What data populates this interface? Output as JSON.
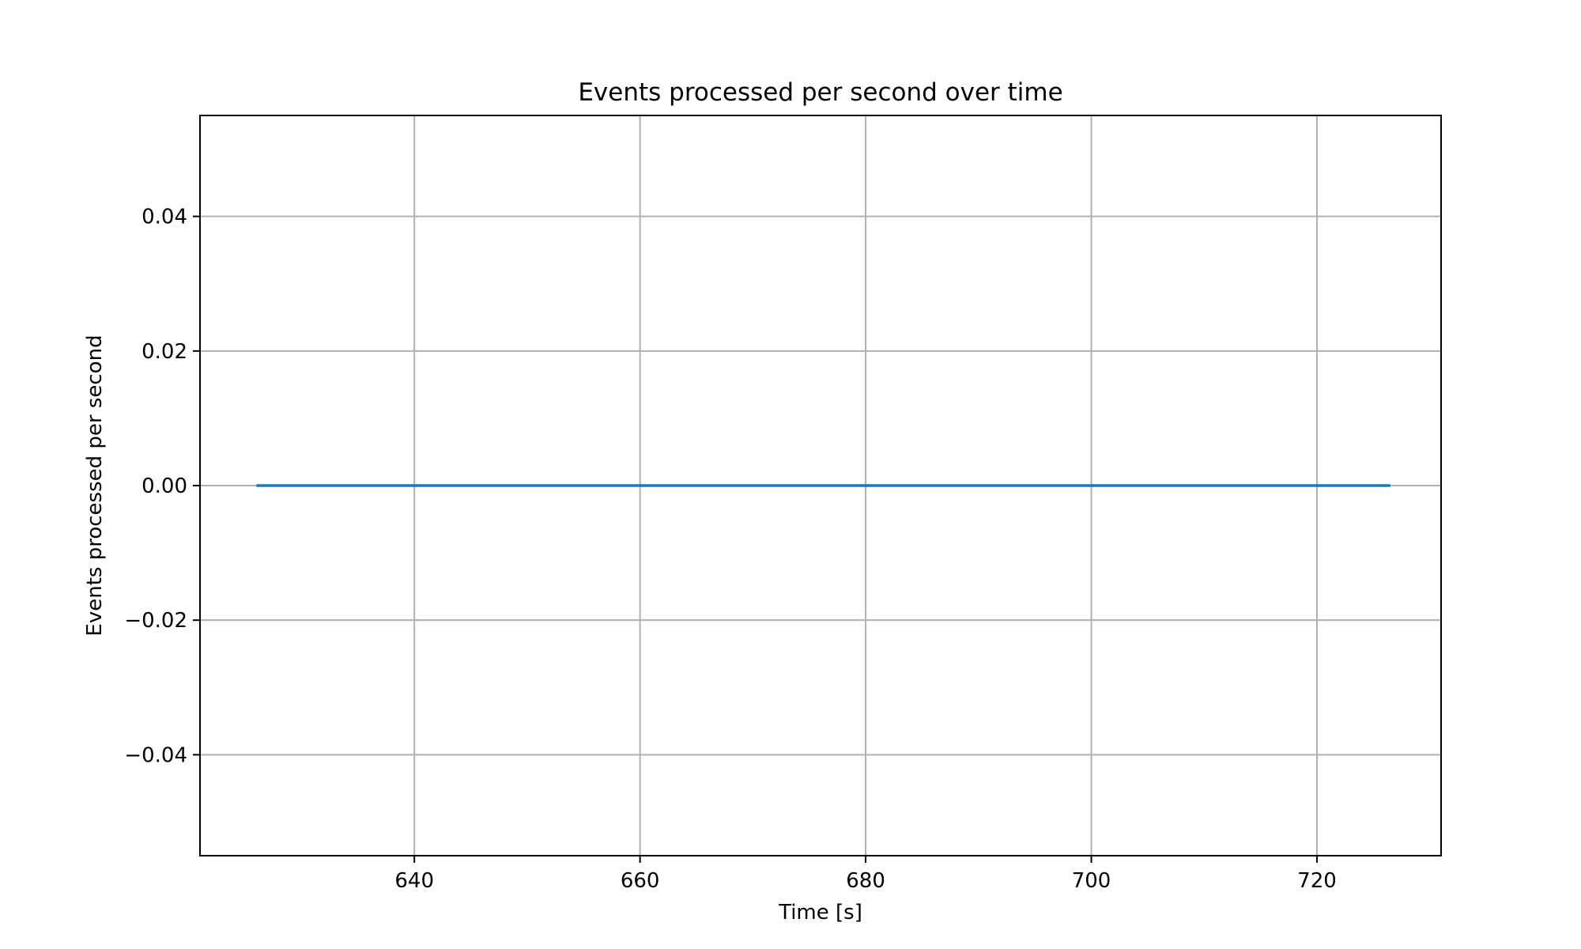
{
  "chart_data": {
    "type": "line",
    "title": "Events processed per second over time",
    "xlabel": "Time [s]",
    "ylabel": "Events processed per second",
    "xlim": [
      621,
      731
    ],
    "ylim": [
      -0.055,
      0.055
    ],
    "x_ticks": [
      640,
      660,
      680,
      700,
      720
    ],
    "x_tick_labels": [
      "640",
      "660",
      "680",
      "700",
      "720"
    ],
    "y_ticks": [
      -0.04,
      -0.02,
      0.0,
      0.02,
      0.04
    ],
    "y_tick_labels": [
      "−0.04",
      "−0.02",
      "0.00",
      "0.02",
      "0.04"
    ],
    "grid": true,
    "series": [
      {
        "color": "#1f77b4",
        "x": [
          626,
          726.5
        ],
        "y": [
          0,
          0
        ]
      }
    ]
  }
}
